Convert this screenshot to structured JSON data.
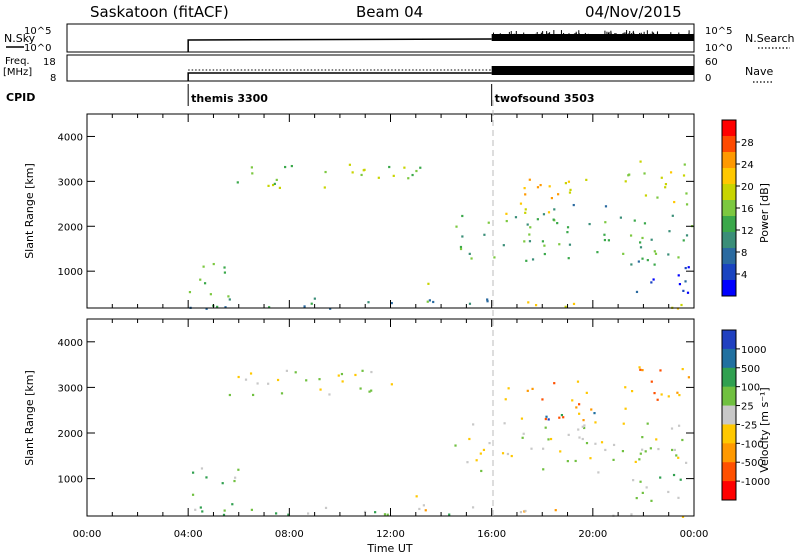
{
  "header": {
    "station": "Saskatoon (fitACF)",
    "beam": "Beam 04",
    "date": "04/Nov/2015"
  },
  "top_panels": {
    "nsky_label": "N.Sky",
    "nsearch_label": "N.Search",
    "nsky_ticks": [
      "10^5",
      "10^0"
    ],
    "nsearch_ticks": [
      "10^5",
      "10^0"
    ],
    "freq_label": [
      "Freq.",
      "[MHz]"
    ],
    "freq_ticks": [
      "18",
      "8"
    ],
    "nave_label": "Nave",
    "nave_ticks": [
      "60",
      "0"
    ],
    "cpid_label": "CPID",
    "cpid_segments": [
      {
        "label": "themis 3300",
        "start_hour": 4
      },
      {
        "label": "twofsound 3503",
        "start_hour": 16
      }
    ]
  },
  "power_colorbar": {
    "label": "Power [dB]",
    "ticks": [
      "28",
      "24",
      "20",
      "16",
      "12",
      "8",
      "4"
    ],
    "colors": [
      "#ff0000",
      "#ff4a00",
      "#ff9900",
      "#ffc800",
      "#c8d400",
      "#7cc840",
      "#3aa84a",
      "#3a8e78",
      "#2a6aa0",
      "#1a44c0",
      "#0000ff"
    ]
  },
  "velocity_colorbar": {
    "label": "Velocity [m s⁻¹]",
    "ticks": [
      "1000",
      "500",
      "100",
      "25",
      "-25",
      "-100",
      "-500",
      "-1000"
    ],
    "colors": [
      "#2040c0",
      "#2070a0",
      "#30a050",
      "#70c040",
      "#c8c8c8",
      "#ffc800",
      "#ff9900",
      "#ff5000",
      "#ff0000"
    ]
  },
  "chart_data": [
    {
      "type": "heatmap",
      "name": "power",
      "xlabel": "Time UT",
      "ylabel": "Slant Range [km]",
      "xlim": [
        0,
        24
      ],
      "ylim": [
        180,
        4500
      ],
      "xticks": [
        "00:00",
        "04:00",
        "08:00",
        "12:00",
        "16:00",
        "20:00",
        "00:00"
      ],
      "yticks": [
        1000,
        2000,
        3000,
        4000
      ],
      "scatter_regions": [
        {
          "t0": 5.6,
          "t1": 13.2,
          "r0": 2850,
          "r1": 3450,
          "level": 5
        },
        {
          "t0": 4.0,
          "t1": 16.0,
          "r0": 180,
          "r1": 450,
          "level": 7
        },
        {
          "t0": 4.0,
          "t1": 6.0,
          "r0": 450,
          "r1": 1250,
          "level": 6
        },
        {
          "t0": 12.8,
          "t1": 13.5,
          "r0": 300,
          "r1": 850,
          "level": 5
        },
        {
          "t0": 14.5,
          "t1": 23.9,
          "r0": 1150,
          "r1": 2300,
          "level": 6
        },
        {
          "t0": 18.0,
          "t1": 20.5,
          "r0": 2200,
          "r1": 2500,
          "level": 7
        },
        {
          "t0": 21.0,
          "t1": 23.9,
          "r0": 2500,
          "r1": 3500,
          "level": 4
        },
        {
          "t0": 21.5,
          "t1": 23.9,
          "r0": 500,
          "r1": 1300,
          "level": 9
        },
        {
          "t0": 16.5,
          "t1": 20.0,
          "r0": 2300,
          "r1": 3200,
          "level": 3
        },
        {
          "t0": 17.0,
          "t1": 23.9,
          "r0": 180,
          "r1": 350,
          "level": 4
        }
      ]
    },
    {
      "type": "heatmap",
      "name": "velocity",
      "xlabel": "Time UT",
      "ylabel": "Slant Range [km]",
      "xlim": [
        0,
        24
      ],
      "ylim": [
        180,
        4500
      ],
      "xticks": [
        "00:00",
        "04:00",
        "08:00",
        "12:00",
        "16:00",
        "20:00",
        "00:00"
      ],
      "yticks": [
        1000,
        2000,
        3000,
        4000
      ],
      "scatter_regions": [
        {
          "t0": 5.6,
          "t1": 13.2,
          "r0": 2850,
          "r1": 3450,
          "level": 4
        },
        {
          "t0": 4.0,
          "t1": 16.0,
          "r0": 180,
          "r1": 450,
          "level": 3
        },
        {
          "t0": 4.0,
          "t1": 6.0,
          "r0": 450,
          "r1": 1250,
          "level": 3
        },
        {
          "t0": 12.8,
          "t1": 13.5,
          "r0": 300,
          "r1": 850,
          "level": 6
        },
        {
          "t0": 14.5,
          "t1": 23.9,
          "r0": 1150,
          "r1": 2300,
          "level": 4
        },
        {
          "t0": 18.0,
          "t1": 20.5,
          "r0": 2200,
          "r1": 2500,
          "level": 1
        },
        {
          "t0": 21.0,
          "t1": 23.9,
          "r0": 2500,
          "r1": 3500,
          "level": 6
        },
        {
          "t0": 21.5,
          "t1": 23.9,
          "r0": 500,
          "r1": 1300,
          "level": 3
        },
        {
          "t0": 16.5,
          "t1": 20.0,
          "r0": 2300,
          "r1": 3200,
          "level": 6
        },
        {
          "t0": 17.0,
          "t1": 23.9,
          "r0": 180,
          "r1": 350,
          "level": 5
        }
      ]
    }
  ]
}
